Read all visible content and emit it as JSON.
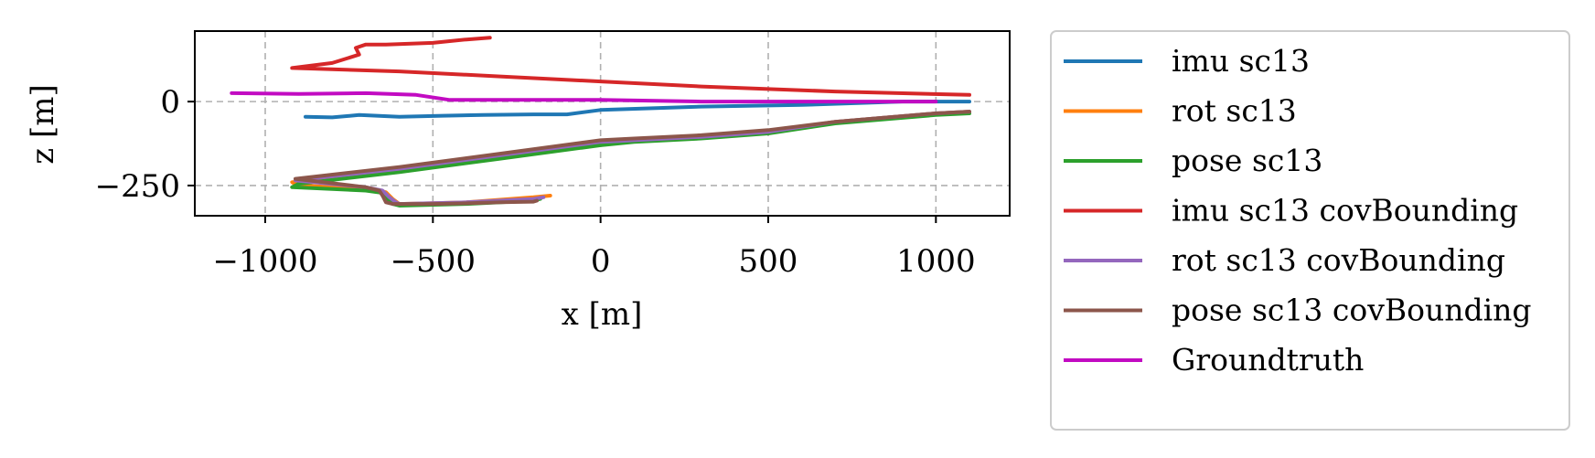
{
  "chart_data": {
    "type": "line",
    "title": "",
    "xlabel": "x [m]",
    "ylabel": "z [m]",
    "xlim": [
      -1210,
      1220
    ],
    "ylim": [
      -340,
      210
    ],
    "xticks": [
      -1000,
      -500,
      0,
      500,
      1000
    ],
    "xtick_labels": [
      "−1000",
      "−500",
      "0",
      "500",
      "1000"
    ],
    "yticks": [
      0,
      -250
    ],
    "ytick_labels": [
      "0",
      "−250"
    ],
    "grid": true,
    "legend_position": "outside-right",
    "series": [
      {
        "name": "imu sc13",
        "color": "#1f77b4",
        "x": [
          -880,
          -800,
          -720,
          -600,
          -470,
          -350,
          -200,
          -100,
          0,
          300,
          600,
          900,
          1050,
          1100
        ],
        "y": [
          -45,
          -47,
          -40,
          -45,
          -42,
          -40,
          -38,
          -38,
          -25,
          -15,
          -10,
          0,
          0,
          0
        ]
      },
      {
        "name": "rot sc13",
        "color": "#ff7f0e",
        "x": [
          1100,
          1000,
          700,
          500,
          300,
          100,
          0,
          -300,
          -600,
          -920,
          -900,
          -680,
          -640,
          -620,
          -600,
          -400,
          -200,
          -150
        ],
        "y": [
          -30,
          -35,
          -60,
          -90,
          -105,
          -115,
          -120,
          -160,
          -200,
          -240,
          -250,
          -260,
          -270,
          -290,
          -305,
          -300,
          -285,
          -280
        ]
      },
      {
        "name": "pose sc13",
        "color": "#2ca02c",
        "x": [
          1100,
          1000,
          700,
          500,
          300,
          100,
          0,
          -300,
          -600,
          -900,
          -920,
          -700,
          -650,
          -640,
          -620,
          -600,
          -400,
          -200,
          -180
        ],
        "y": [
          -35,
          -40,
          -65,
          -95,
          -110,
          -120,
          -130,
          -170,
          -210,
          -245,
          -255,
          -265,
          -272,
          -290,
          -305,
          -310,
          -305,
          -295,
          -290
        ]
      },
      {
        "name": "imu sc13 covBounding",
        "color": "#d62728",
        "x": [
          1100,
          700,
          300,
          0,
          -300,
          -600,
          -920,
          -800,
          -720,
          -730,
          -700,
          -640,
          -500,
          -400,
          -330
        ],
        "y": [
          20,
          30,
          45,
          60,
          75,
          90,
          100,
          115,
          140,
          160,
          170,
          170,
          175,
          185,
          190
        ]
      },
      {
        "name": "rot sc13 covBounding",
        "color": "#9467bd",
        "x": [
          1100,
          1000,
          700,
          500,
          300,
          100,
          0,
          -300,
          -600,
          -910,
          -700,
          -650,
          -630,
          -610,
          -600,
          -400,
          -200,
          -170
        ],
        "y": [
          -30,
          -35,
          -60,
          -90,
          -105,
          -115,
          -120,
          -160,
          -200,
          -235,
          -255,
          -265,
          -285,
          -300,
          -305,
          -300,
          -290,
          -285
        ]
      },
      {
        "name": "pose sc13 covBounding",
        "color": "#8c564b",
        "x": [
          1100,
          1000,
          700,
          500,
          300,
          100,
          0,
          -300,
          -600,
          -910,
          -700,
          -660,
          -650,
          -640,
          -620,
          -500,
          -400,
          -300,
          -200,
          -190
        ],
        "y": [
          -30,
          -35,
          -60,
          -85,
          -100,
          -110,
          -115,
          -155,
          -195,
          -230,
          -255,
          -265,
          -280,
          -300,
          -305,
          -305,
          -303,
          -300,
          -298,
          -295
        ]
      },
      {
        "name": "Groundtruth",
        "color": "#c20bc2",
        "x": [
          -1100,
          -900,
          -700,
          -550,
          -450,
          -300,
          0,
          300,
          600,
          900,
          1000
        ],
        "y": [
          25,
          23,
          25,
          20,
          5,
          5,
          5,
          0,
          0,
          0,
          0
        ]
      }
    ]
  }
}
